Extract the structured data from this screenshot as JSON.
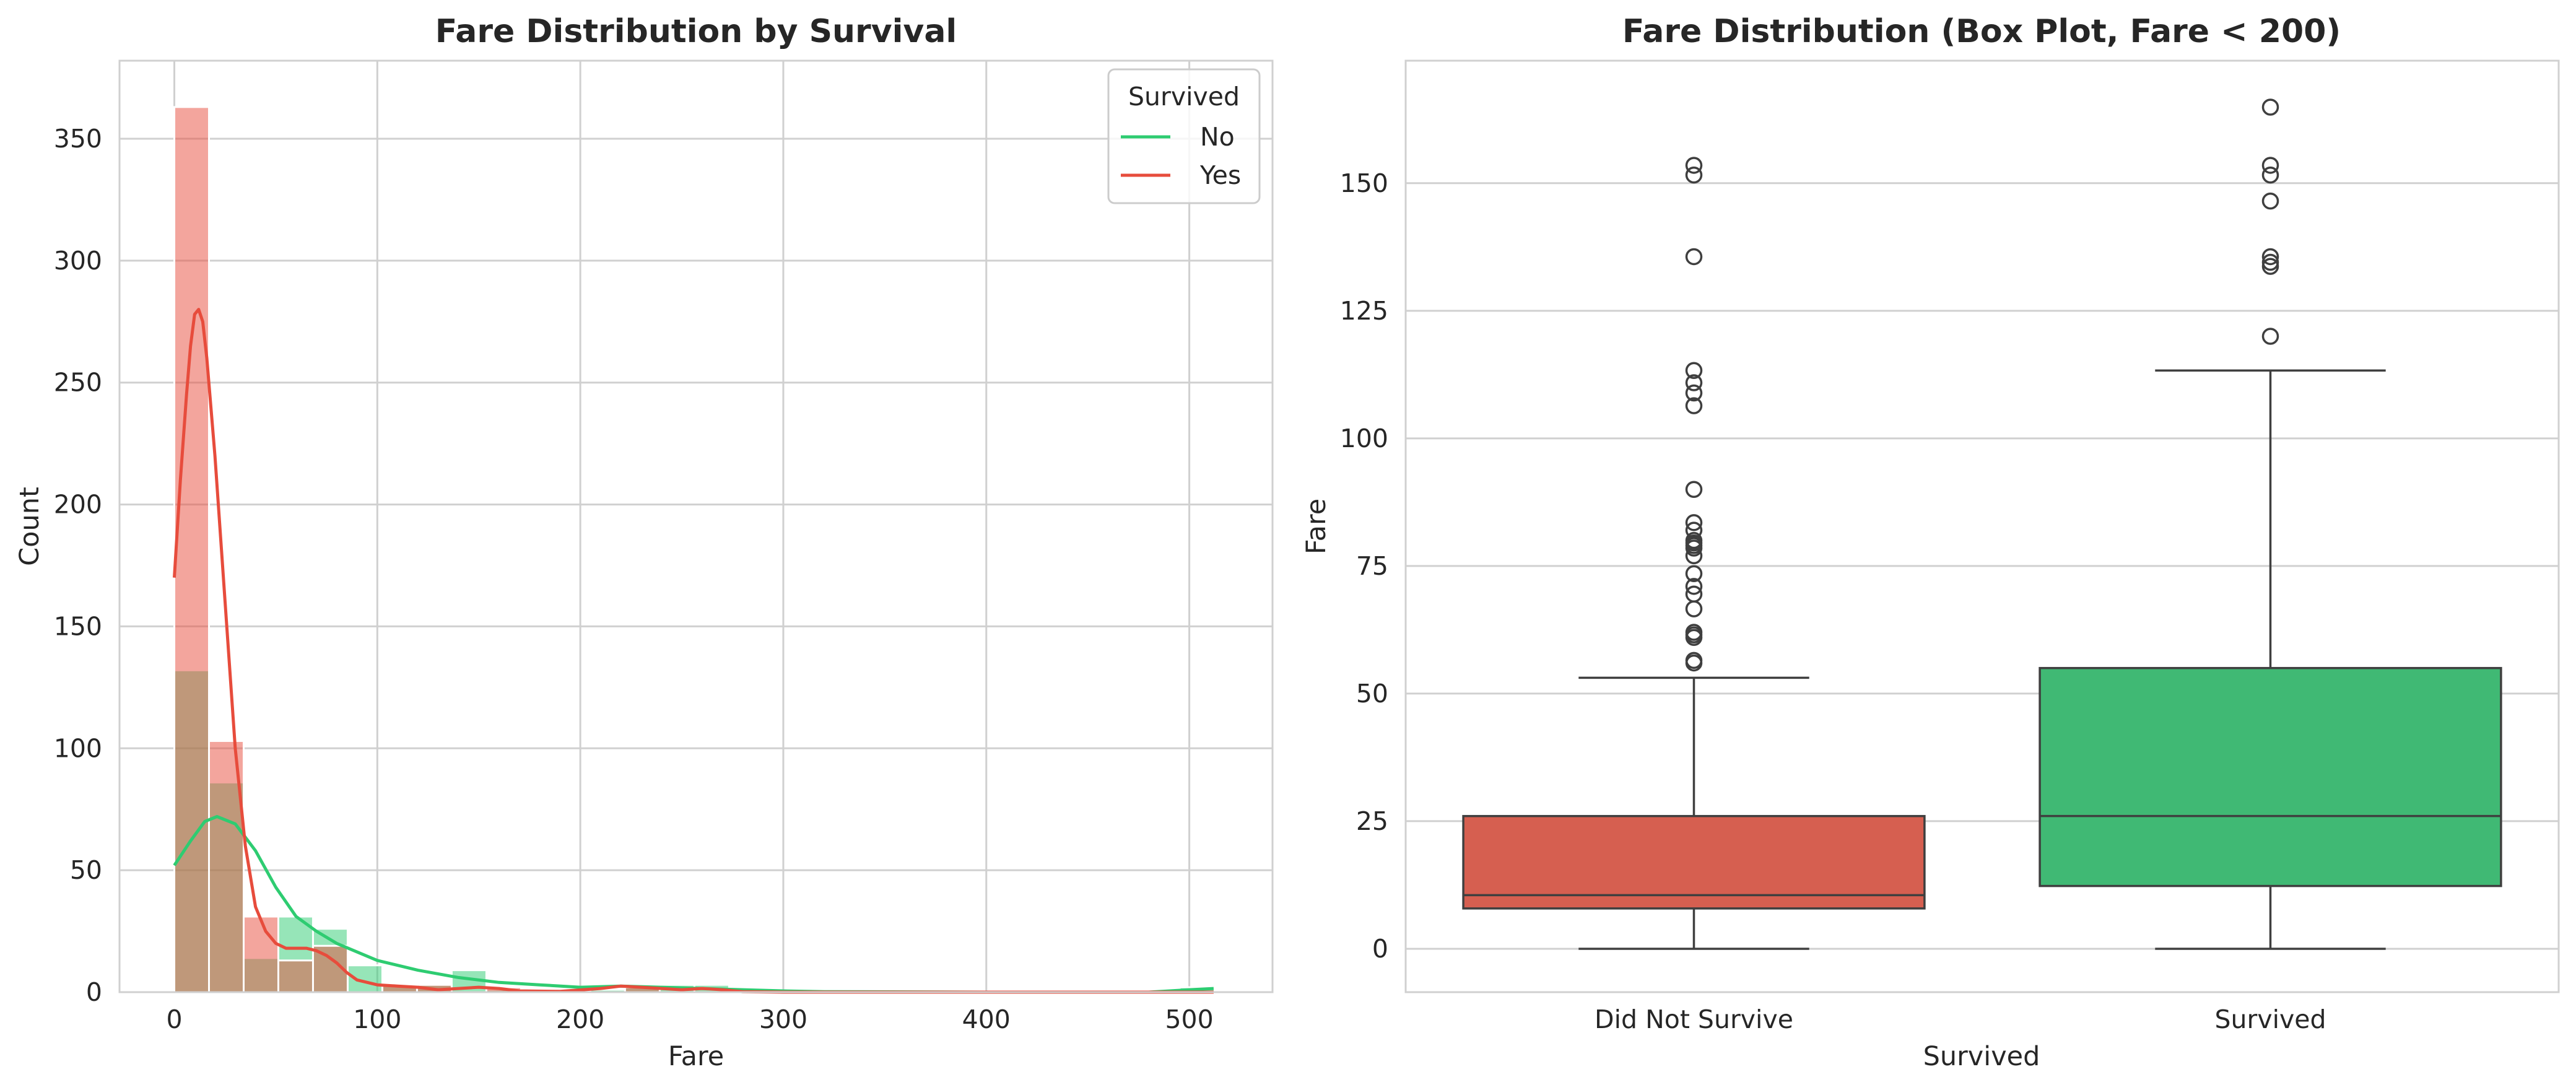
{
  "colors": {
    "no": "#2ecc71",
    "yes": "#e74c3c",
    "box_died": "#d65f50",
    "box_survived": "#40b974",
    "grid": "#d0d0d0",
    "axes_edge": "#d0d0d0",
    "text": "#262626",
    "box_line": "#3f3f3f"
  },
  "chart_data": [
    {
      "type": "histogram",
      "title": "Fare Distribution by Survival",
      "xlabel": "Fare",
      "ylabel": "Count",
      "xlim": [
        -27,
        541
      ],
      "ylim": [
        0,
        382
      ],
      "xticks": [
        0,
        100,
        200,
        300,
        400,
        500
      ],
      "xtick_labels": [
        "0",
        "100",
        "200",
        "300",
        "400",
        "500"
      ],
      "yticks": [
        0,
        50,
        100,
        150,
        200,
        250,
        300,
        350
      ],
      "ytick_labels": [
        "0",
        "50",
        "100",
        "150",
        "200",
        "250",
        "300",
        "350"
      ],
      "grid": true,
      "bin_edges": [
        0,
        17.08,
        34.16,
        51.24,
        68.32,
        85.4,
        102.48,
        119.56,
        136.64,
        153.72,
        170.8,
        187.88,
        204.96,
        222.04,
        239.12,
        256.2,
        273.28,
        290.36,
        307.44,
        324.52,
        341.6,
        358.68,
        375.76,
        392.84,
        409.92,
        427.0,
        444.08,
        461.16,
        478.24,
        495.32,
        512.4
      ],
      "legend": {
        "title": "Survived",
        "position": "top-right",
        "entries": [
          "No",
          "Yes"
        ]
      },
      "series": [
        {
          "name": "No",
          "counts": [
            132,
            86,
            14,
            31,
            26,
            11,
            3,
            3,
            9,
            1,
            0,
            0,
            1,
            2,
            3,
            3,
            0,
            0,
            0,
            0,
            0,
            0,
            0,
            0,
            0,
            0,
            0,
            0,
            0,
            2
          ],
          "kde": [
            [
              0,
              52
            ],
            [
              8,
              62
            ],
            [
              15,
              70
            ],
            [
              21,
              72
            ],
            [
              30,
              69
            ],
            [
              40,
              58
            ],
            [
              50,
              43
            ],
            [
              60,
              31
            ],
            [
              70,
              25
            ],
            [
              80,
              20
            ],
            [
              100,
              13
            ],
            [
              120,
              9
            ],
            [
              140,
              6
            ],
            [
              160,
              4
            ],
            [
              180,
              3
            ],
            [
              200,
              2
            ],
            [
              220,
              2.5
            ],
            [
              240,
              2
            ],
            [
              260,
              1.5
            ],
            [
              280,
              1
            ],
            [
              300,
              0.5
            ],
            [
              320,
              0.2
            ],
            [
              400,
              0
            ],
            [
              480,
              0
            ],
            [
              500,
              1
            ],
            [
              512,
              1.5
            ]
          ]
        },
        {
          "name": "Yes",
          "counts": [
            363,
            103,
            31,
            13,
            19,
            0,
            3,
            3,
            0,
            2,
            0,
            0,
            0,
            2,
            0,
            0,
            0,
            0,
            0,
            0,
            0,
            0,
            0,
            0,
            0,
            0,
            0,
            0,
            0,
            0
          ],
          "kde": [
            [
              0,
              170
            ],
            [
              3,
              210
            ],
            [
              6,
              245
            ],
            [
              8,
              265
            ],
            [
              10,
              278
            ],
            [
              12,
              280
            ],
            [
              14,
              275
            ],
            [
              16,
              260
            ],
            [
              20,
              220
            ],
            [
              25,
              160
            ],
            [
              30,
              100
            ],
            [
              35,
              60
            ],
            [
              40,
              35
            ],
            [
              45,
              25
            ],
            [
              50,
              20
            ],
            [
              55,
              18
            ],
            [
              60,
              18
            ],
            [
              65,
              18
            ],
            [
              70,
              17
            ],
            [
              75,
              15
            ],
            [
              80,
              12
            ],
            [
              85,
              8
            ],
            [
              90,
              5
            ],
            [
              100,
              3
            ],
            [
              110,
              2.5
            ],
            [
              120,
              2
            ],
            [
              130,
              1
            ],
            [
              140,
              1.5
            ],
            [
              150,
              2
            ],
            [
              160,
              1.5
            ],
            [
              170,
              0.5
            ],
            [
              190,
              0.3
            ],
            [
              210,
              1.5
            ],
            [
              220,
              2.5
            ],
            [
              230,
              2
            ],
            [
              250,
              1
            ],
            [
              260,
              1.5
            ],
            [
              270,
              1
            ],
            [
              280,
              0.2
            ],
            [
              300,
              0
            ],
            [
              500,
              0
            ],
            [
              512,
              0
            ]
          ]
        }
      ]
    },
    {
      "type": "box",
      "title": "Fare Distribution (Box Plot, Fare < 200)",
      "xlabel": "Survived",
      "ylabel": "Fare",
      "ylim": [
        -8.5,
        174
      ],
      "yticks": [
        0,
        25,
        50,
        75,
        100,
        125,
        150
      ],
      "ytick_labels": [
        "0",
        "25",
        "50",
        "75",
        "100",
        "125",
        "150"
      ],
      "categories": [
        "Did Not Survive",
        "Survived"
      ],
      "grid": true,
      "boxes": [
        {
          "name": "Did Not Survive",
          "whisker_low": 0,
          "q1": 7.9,
          "median": 10.5,
          "q3": 26,
          "whisker_high": 53.1,
          "outliers": [
            56,
            56.5,
            61,
            61.5,
            62,
            66.6,
            69.5,
            71,
            73.5,
            77,
            78.5,
            79,
            79.5,
            80,
            82,
            83.5,
            90,
            106.4,
            108.9,
            110.9,
            113.3,
            135.6,
            151.6,
            153.5
          ]
        },
        {
          "name": "Survived",
          "whisker_low": 0,
          "q1": 12.3,
          "median": 26,
          "q3": 55,
          "whisker_high": 113.3,
          "outliers": [
            120,
            133.7,
            134.5,
            135.6,
            146.5,
            151.6,
            153.5,
            164.9
          ]
        }
      ]
    }
  ]
}
